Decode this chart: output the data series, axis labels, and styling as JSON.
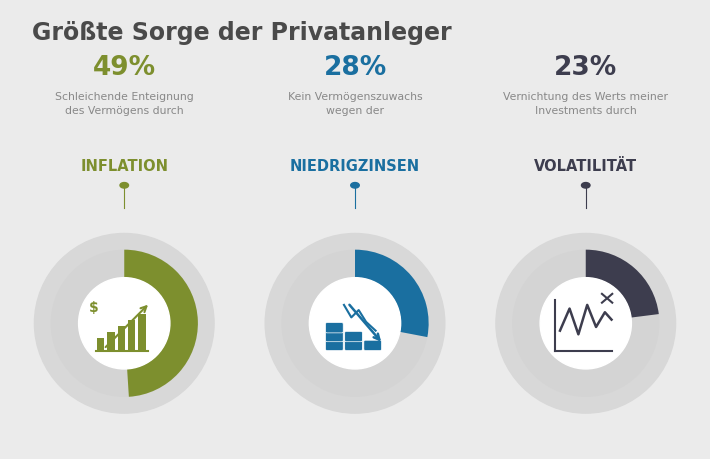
{
  "title": "Größte Sorge der Privatanleger",
  "title_color": "#4a4a4a",
  "background_color": "#ebebeb",
  "segments": [
    {
      "percent": 49,
      "percent_color": "#7d8f2e",
      "description": "Schleichende Enteignung\ndes Vermögens durch",
      "keyword": "INFLATION",
      "keyword_color": "#7d8f2e",
      "donut_color": "#7d8f2e",
      "donut_remainder_color": "#d4d4d4",
      "shadow_color": "#d8d8d8",
      "start_angle": 90,
      "counterclock": false
    },
    {
      "percent": 28,
      "percent_color": "#1a6fa0",
      "description": "Kein Vermögenszuwachs\nwegen der",
      "keyword": "NIEDRIGZINSEN",
      "keyword_color": "#1a6fa0",
      "donut_color": "#1a6fa0",
      "donut_remainder_color": "#d4d4d4",
      "shadow_color": "#d8d8d8",
      "start_angle": 90,
      "counterclock": false
    },
    {
      "percent": 23,
      "percent_color": "#3d3d4e",
      "description": "Vernichtung des Werts meiner\nInvestments durch",
      "keyword": "VOLATILITÄT",
      "keyword_color": "#3d3d4e",
      "donut_color": "#3d3d4e",
      "donut_remainder_color": "#d4d4d4",
      "shadow_color": "#d8d8d8",
      "start_angle": 90,
      "counterclock": false
    }
  ]
}
